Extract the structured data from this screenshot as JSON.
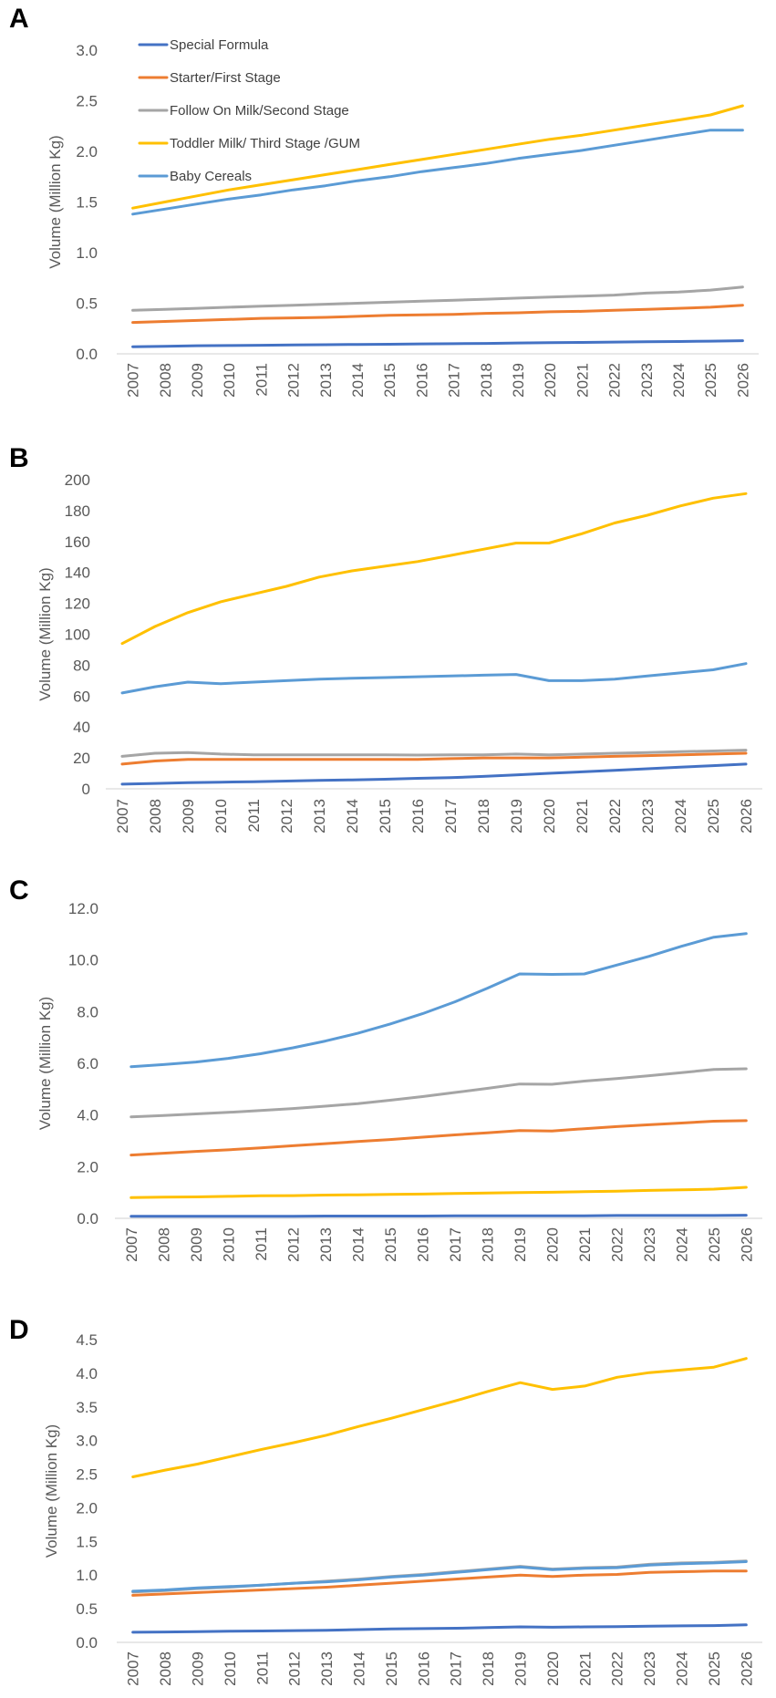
{
  "colors": {
    "special_formula": "#4472C4",
    "starter": "#ED7D31",
    "follow_on": "#A5A5A5",
    "toddler": "#FFC000",
    "cereals": "#5B9BD5",
    "axis": "#D9D9D9",
    "text": "#595959"
  },
  "legend": [
    {
      "label": "Special Formula",
      "color_key": "special_formula"
    },
    {
      "label": "Starter/First Stage",
      "color_key": "starter"
    },
    {
      "label": "Follow On Milk/Second Stage",
      "color_key": "follow_on"
    },
    {
      "label": "Toddler Milk/ Third Stage /GUM",
      "color_key": "toddler"
    },
    {
      "label": "Baby Cereals",
      "color_key": "cereals"
    }
  ],
  "chart_data": [
    {
      "panel": "A",
      "type": "line",
      "ylabel": "Volume (Million Kg)",
      "ylim": [
        0,
        3.0
      ],
      "yticks": [
        "0.0",
        "0.5",
        "1.0",
        "1.5",
        "2.0",
        "2.5",
        "3.0"
      ],
      "legend": "top-left",
      "categories": [
        "2007",
        "2008",
        "2009",
        "2010",
        "2011",
        "2012",
        "2013",
        "2014",
        "2015",
        "2016",
        "2017",
        "2018",
        "2019",
        "2020",
        "2021",
        "2022",
        "2023",
        "2024",
        "2025",
        "2026"
      ],
      "series": [
        {
          "name": "Special Formula",
          "color_key": "special_formula",
          "values": [
            0.07,
            0.075,
            0.08,
            0.082,
            0.085,
            0.088,
            0.09,
            0.093,
            0.095,
            0.098,
            0.1,
            0.103,
            0.107,
            0.11,
            0.113,
            0.116,
            0.119,
            0.122,
            0.125,
            0.13
          ]
        },
        {
          "name": "Starter/First Stage",
          "color_key": "starter",
          "values": [
            0.31,
            0.32,
            0.33,
            0.34,
            0.35,
            0.355,
            0.36,
            0.37,
            0.38,
            0.385,
            0.39,
            0.4,
            0.405,
            0.415,
            0.42,
            0.43,
            0.44,
            0.45,
            0.46,
            0.48
          ]
        },
        {
          "name": "Follow On Milk/Second Stage",
          "color_key": "follow_on",
          "values": [
            0.43,
            0.44,
            0.45,
            0.46,
            0.47,
            0.48,
            0.49,
            0.5,
            0.51,
            0.52,
            0.53,
            0.54,
            0.55,
            0.56,
            0.57,
            0.58,
            0.6,
            0.61,
            0.63,
            0.66
          ]
        },
        {
          "name": "Toddler Milk/ Third Stage /GUM",
          "color_key": "toddler",
          "values": [
            1.44,
            1.5,
            1.56,
            1.62,
            1.67,
            1.72,
            1.77,
            1.82,
            1.87,
            1.92,
            1.97,
            2.02,
            2.07,
            2.12,
            2.16,
            2.21,
            2.26,
            2.31,
            2.36,
            2.45
          ]
        },
        {
          "name": "Baby Cereals",
          "color_key": "cereals",
          "values": [
            1.38,
            1.43,
            1.48,
            1.53,
            1.57,
            1.62,
            1.66,
            1.71,
            1.75,
            1.8,
            1.84,
            1.88,
            1.93,
            1.97,
            2.01,
            2.06,
            2.11,
            2.16,
            2.21,
            2.21
          ]
        }
      ]
    },
    {
      "panel": "B",
      "type": "line",
      "ylabel": "Volume (Million Kg)",
      "ylim": [
        0,
        200
      ],
      "yticks": [
        "0",
        "20",
        "40",
        "60",
        "80",
        "100",
        "120",
        "140",
        "160",
        "180",
        "200"
      ],
      "categories": [
        "2007",
        "2008",
        "2009",
        "2010",
        "2011",
        "2012",
        "2013",
        "2014",
        "2015",
        "2016",
        "2017",
        "2018",
        "2019",
        "2020",
        "2021",
        "2022",
        "2023",
        "2024",
        "2025",
        "2026"
      ],
      "series": [
        {
          "name": "Special Formula",
          "color_key": "special_formula",
          "values": [
            3,
            3.5,
            4,
            4.3,
            4.6,
            5,
            5.5,
            5.8,
            6.2,
            6.8,
            7.2,
            8,
            9,
            10,
            11,
            12,
            13,
            14,
            15,
            16
          ]
        },
        {
          "name": "Starter/First Stage",
          "color_key": "starter",
          "values": [
            16,
            18,
            19,
            19,
            19,
            19,
            19,
            19,
            19,
            19,
            19.5,
            20,
            20,
            20,
            20.5,
            21,
            21.5,
            22,
            22.5,
            23
          ]
        },
        {
          "name": "Follow On Milk/Second Stage",
          "color_key": "follow_on",
          "values": [
            21,
            23,
            23.5,
            22.5,
            22,
            22,
            22,
            22,
            22,
            21.8,
            22,
            22,
            22.5,
            22,
            22.5,
            23,
            23.5,
            24,
            24.5,
            25
          ]
        },
        {
          "name": "Toddler Milk/ Third Stage /GUM",
          "color_key": "toddler",
          "values": [
            94,
            105,
            114,
            121,
            126,
            131,
            137,
            141,
            144,
            147,
            151,
            155,
            159,
            159,
            165,
            172,
            177,
            183,
            188,
            191
          ]
        },
        {
          "name": "Baby Cereals",
          "color_key": "cereals",
          "values": [
            62,
            66,
            69,
            68,
            69,
            70,
            71,
            71.5,
            72,
            72.5,
            73,
            73.5,
            74,
            70,
            70,
            71,
            73,
            75,
            77,
            81
          ]
        }
      ]
    },
    {
      "panel": "C",
      "type": "line",
      "ylabel": "Volume (Million Kg)",
      "ylim": [
        0,
        12.0
      ],
      "yticks": [
        "0.0",
        "2.0",
        "4.0",
        "6.0",
        "8.0",
        "10.0",
        "12.0"
      ],
      "categories": [
        "2007",
        "2008",
        "2009",
        "2010",
        "2011",
        "2012",
        "2013",
        "2014",
        "2015",
        "2016",
        "2017",
        "2018",
        "2019",
        "2020",
        "2021",
        "2022",
        "2023",
        "2024",
        "2025",
        "2026"
      ],
      "series": [
        {
          "name": "Special Formula",
          "color_key": "special_formula",
          "values": [
            0.08,
            0.08,
            0.08,
            0.08,
            0.08,
            0.08,
            0.09,
            0.09,
            0.09,
            0.09,
            0.1,
            0.1,
            0.1,
            0.1,
            0.1,
            0.11,
            0.11,
            0.11,
            0.11,
            0.12
          ]
        },
        {
          "name": "Starter/First Stage",
          "color_key": "starter",
          "values": [
            2.45,
            2.52,
            2.59,
            2.65,
            2.73,
            2.81,
            2.89,
            2.97,
            3.05,
            3.14,
            3.23,
            3.31,
            3.4,
            3.38,
            3.47,
            3.55,
            3.62,
            3.69,
            3.76,
            3.78
          ]
        },
        {
          "name": "Follow On Milk/Second Stage",
          "color_key": "follow_on",
          "values": [
            3.93,
            3.98,
            4.04,
            4.1,
            4.17,
            4.25,
            4.34,
            4.44,
            4.57,
            4.71,
            4.87,
            5.03,
            5.2,
            5.19,
            5.31,
            5.41,
            5.52,
            5.64,
            5.76,
            5.79
          ]
        },
        {
          "name": "Toddler Milk/ Third Stage /GUM",
          "color_key": "toddler",
          "values": [
            0.8,
            0.82,
            0.83,
            0.85,
            0.87,
            0.88,
            0.9,
            0.91,
            0.93,
            0.94,
            0.96,
            0.98,
            1.0,
            1.01,
            1.03,
            1.05,
            1.08,
            1.1,
            1.13,
            1.2
          ]
        },
        {
          "name": "Baby Cereals",
          "color_key": "cereals",
          "values": [
            5.87,
            5.95,
            6.05,
            6.19,
            6.37,
            6.6,
            6.86,
            7.16,
            7.52,
            7.92,
            8.38,
            8.9,
            9.46,
            9.44,
            9.46,
            9.8,
            10.14,
            10.53,
            10.88,
            11.02
          ]
        }
      ]
    },
    {
      "panel": "D",
      "type": "line",
      "ylabel": "Volume (Million Kg)",
      "ylim": [
        0,
        4.5
      ],
      "yticks": [
        "0.0",
        "0.5",
        "1.0",
        "1.5",
        "2.0",
        "2.5",
        "3.0",
        "3.5",
        "4.0",
        "4.5"
      ],
      "categories": [
        "2007",
        "2008",
        "2009",
        "2010",
        "2011",
        "2012",
        "2013",
        "2014",
        "2015",
        "2016",
        "2017",
        "2018",
        "2019",
        "2020",
        "2021",
        "2022",
        "2023",
        "2024",
        "2025",
        "2026"
      ],
      "series": [
        {
          "name": "Special Formula",
          "color_key": "special_formula",
          "values": [
            0.15,
            0.155,
            0.16,
            0.165,
            0.17,
            0.175,
            0.18,
            0.19,
            0.2,
            0.205,
            0.21,
            0.22,
            0.23,
            0.225,
            0.23,
            0.235,
            0.24,
            0.245,
            0.25,
            0.26
          ]
        },
        {
          "name": "Starter/First Stage",
          "color_key": "starter",
          "values": [
            0.7,
            0.72,
            0.74,
            0.76,
            0.78,
            0.8,
            0.82,
            0.85,
            0.88,
            0.91,
            0.94,
            0.97,
            1.0,
            0.98,
            1.0,
            1.01,
            1.04,
            1.05,
            1.06,
            1.06
          ]
        },
        {
          "name": "Follow On Milk/Second Stage",
          "color_key": "follow_on",
          "values": [
            0.75,
            0.77,
            0.8,
            0.82,
            0.85,
            0.88,
            0.91,
            0.94,
            0.98,
            1.01,
            1.05,
            1.09,
            1.13,
            1.09,
            1.11,
            1.12,
            1.16,
            1.18,
            1.19,
            1.21
          ]
        },
        {
          "name": "Toddler Milk/ Third Stage /GUM",
          "color_key": "toddler",
          "values": [
            2.46,
            2.56,
            2.65,
            2.76,
            2.87,
            2.97,
            3.08,
            3.21,
            3.33,
            3.46,
            3.59,
            3.73,
            3.86,
            3.76,
            3.81,
            3.94,
            4.01,
            4.05,
            4.09,
            4.22
          ]
        },
        {
          "name": "Baby Cereals",
          "color_key": "cereals",
          "values": [
            0.76,
            0.78,
            0.81,
            0.83,
            0.85,
            0.88,
            0.9,
            0.93,
            0.97,
            1.0,
            1.04,
            1.08,
            1.12,
            1.08,
            1.1,
            1.11,
            1.15,
            1.17,
            1.18,
            1.2
          ]
        }
      ]
    }
  ]
}
